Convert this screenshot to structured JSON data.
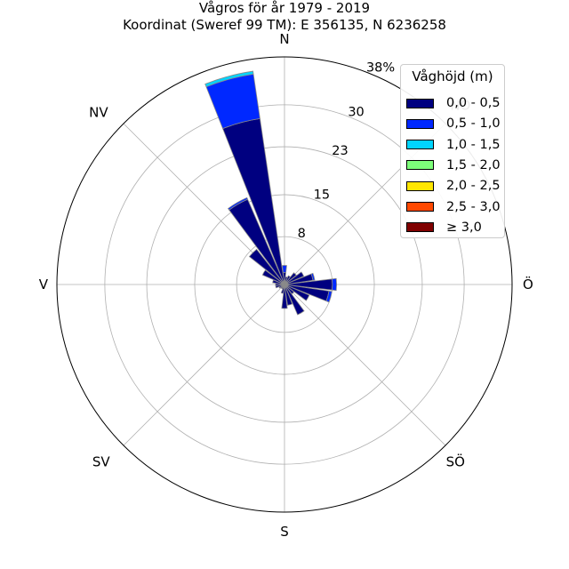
{
  "title_line1": "Vågros för år 1979 - 2019",
  "title_line2": "Koordinat (Sweref 99 TM): E 356135, N 6236258",
  "legend": {
    "title": "Våghöjd (m)",
    "items": [
      {
        "label": "0,0 - 0,5",
        "color": "#000080"
      },
      {
        "label": "0,5 - 1,0",
        "color": "#0028ff"
      },
      {
        "label": "1,0 - 1,5",
        "color": "#00d4ff"
      },
      {
        "label": "1,5 - 2,0",
        "color": "#7dff7a"
      },
      {
        "label": "2,0 - 2,5",
        "color": "#ffe600"
      },
      {
        "label": "2,5 - 3,0",
        "color": "#ff4800"
      },
      {
        "label": "≥ 3,0",
        "color": "#800000"
      }
    ]
  },
  "chart_data": {
    "type": "wind-rose",
    "direction_labels": [
      "N",
      "NO",
      "Ö",
      "SÖ",
      "S",
      "SV",
      "V",
      "NV"
    ],
    "radial_tick_labels": [
      "8",
      "15",
      "23",
      "30",
      "38%"
    ],
    "radial_ticks": [
      8,
      15,
      23,
      30,
      38
    ],
    "rmax": 38,
    "grid": true,
    "legend_position": "top-right",
    "series_colors": [
      "#000080",
      "#0028ff",
      "#00d4ff",
      "#7dff7a",
      "#ffe600",
      "#ff4800",
      "#800000"
    ],
    "bars": [
      {
        "direction_deg": 0,
        "stacked": [
          2.0,
          1.2
        ]
      },
      {
        "direction_deg": 15,
        "stacked": [
          1.3
        ]
      },
      {
        "direction_deg": 30,
        "stacked": [
          1.6
        ]
      },
      {
        "direction_deg": 45,
        "stacked": [
          2.5
        ]
      },
      {
        "direction_deg": 60,
        "stacked": [
          3.5
        ]
      },
      {
        "direction_deg": 75,
        "stacked": [
          4.8,
          0.3
        ]
      },
      {
        "direction_deg": 90,
        "stacked": [
          8.0,
          0.7
        ]
      },
      {
        "direction_deg": 105,
        "stacked": [
          7.5,
          0.5
        ]
      },
      {
        "direction_deg": 120,
        "stacked": [
          4.5
        ]
      },
      {
        "direction_deg": 135,
        "stacked": [
          2.0
        ]
      },
      {
        "direction_deg": 150,
        "stacked": [
          5.5
        ]
      },
      {
        "direction_deg": 165,
        "stacked": [
          3.5
        ]
      },
      {
        "direction_deg": 180,
        "stacked": [
          4.0
        ]
      },
      {
        "direction_deg": 195,
        "stacked": [
          1.5
        ]
      },
      {
        "direction_deg": 210,
        "stacked": [
          0.8
        ]
      },
      {
        "direction_deg": 225,
        "stacked": [
          0.8
        ]
      },
      {
        "direction_deg": 240,
        "stacked": [
          1.0
        ]
      },
      {
        "direction_deg": 255,
        "stacked": [
          1.5
        ]
      },
      {
        "direction_deg": 270,
        "stacked": [
          1.5
        ]
      },
      {
        "direction_deg": 285,
        "stacked": [
          2.0
        ]
      },
      {
        "direction_deg": 300,
        "stacked": [
          4.0
        ]
      },
      {
        "direction_deg": 315,
        "stacked": [
          7.5
        ]
      },
      {
        "direction_deg": 330,
        "stacked": [
          15.5,
          0.3
        ]
      },
      {
        "direction_deg": 345,
        "stacked": [
          28.0,
          7.5,
          0.5
        ]
      }
    ]
  }
}
